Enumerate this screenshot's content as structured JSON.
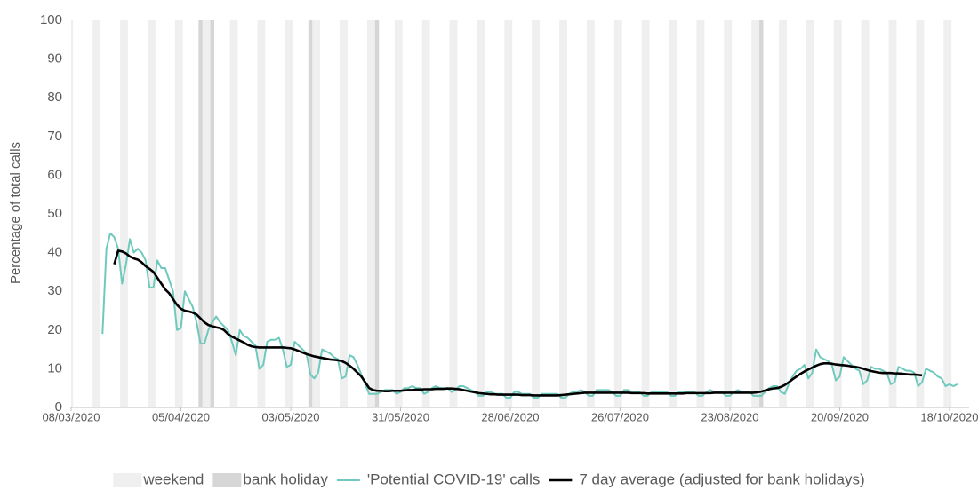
{
  "chart_data": {
    "type": "line",
    "y_label": "Percentage of total calls",
    "xlim": [
      "08/03/2020",
      "23/10/2020"
    ],
    "xticks": [
      "08/03/2020",
      "05/04/2020",
      "03/05/2020",
      "31/05/2020",
      "28/06/2020",
      "26/07/2020",
      "23/08/2020",
      "20/09/2020",
      "18/10/2020"
    ],
    "ylim": [
      0,
      100
    ],
    "yticks": [
      0,
      10,
      20,
      30,
      40,
      50,
      60,
      70,
      80,
      90,
      100
    ],
    "grid": false,
    "weekend": {
      "name": "weekend",
      "color": "#efefef"
    },
    "bank_holiday": {
      "name": "bank holiday",
      "color": "#d6d6d6",
      "dates": [
        "10/04/2020",
        "13/04/2020",
        "08/05/2020",
        "25/05/2020",
        "31/08/2020"
      ]
    },
    "x": [
      "16/03/2020",
      "17/03/2020",
      "18/03/2020",
      "19/03/2020",
      "20/03/2020",
      "21/03/2020",
      "22/03/2020",
      "23/03/2020",
      "24/03/2020",
      "25/03/2020",
      "26/03/2020",
      "27/03/2020",
      "28/03/2020",
      "29/03/2020",
      "30/03/2020",
      "31/03/2020",
      "01/04/2020",
      "02/04/2020",
      "03/04/2020",
      "04/04/2020",
      "05/04/2020",
      "06/04/2020",
      "07/04/2020",
      "08/04/2020",
      "09/04/2020",
      "10/04/2020",
      "11/04/2020",
      "12/04/2020",
      "13/04/2020",
      "14/04/2020",
      "15/04/2020",
      "16/04/2020",
      "17/04/2020",
      "18/04/2020",
      "19/04/2020",
      "20/04/2020",
      "21/04/2020",
      "22/04/2020",
      "23/04/2020",
      "24/04/2020",
      "25/04/2020",
      "26/04/2020",
      "27/04/2020",
      "28/04/2020",
      "29/04/2020",
      "30/04/2020",
      "01/05/2020",
      "02/05/2020",
      "03/05/2020",
      "04/05/2020",
      "05/05/2020",
      "06/05/2020",
      "07/05/2020",
      "08/05/2020",
      "09/05/2020",
      "10/05/2020",
      "11/05/2020",
      "12/05/2020",
      "13/05/2020",
      "14/05/2020",
      "15/05/2020",
      "16/05/2020",
      "17/05/2020",
      "18/05/2020",
      "19/05/2020",
      "20/05/2020",
      "21/05/2020",
      "22/05/2020",
      "23/05/2020",
      "24/05/2020",
      "25/05/2020",
      "26/05/2020",
      "27/05/2020",
      "28/05/2020",
      "29/05/2020",
      "30/05/2020",
      "31/05/2020",
      "01/06/2020",
      "02/06/2020",
      "03/06/2020",
      "04/06/2020",
      "05/06/2020",
      "06/06/2020",
      "07/06/2020",
      "08/06/2020",
      "09/06/2020",
      "10/06/2020",
      "11/06/2020",
      "12/06/2020",
      "13/06/2020",
      "14/06/2020",
      "15/06/2020",
      "16/06/2020",
      "17/06/2020",
      "18/06/2020",
      "19/06/2020",
      "20/06/2020",
      "21/06/2020",
      "22/06/2020",
      "23/06/2020",
      "24/06/2020",
      "25/06/2020",
      "26/06/2020",
      "27/06/2020",
      "28/06/2020",
      "29/06/2020",
      "30/06/2020",
      "01/07/2020",
      "02/07/2020",
      "03/07/2020",
      "04/07/2020",
      "05/07/2020",
      "06/07/2020",
      "07/07/2020",
      "08/07/2020",
      "09/07/2020",
      "10/07/2020",
      "11/07/2020",
      "12/07/2020",
      "13/07/2020",
      "14/07/2020",
      "15/07/2020",
      "16/07/2020",
      "17/07/2020",
      "18/07/2020",
      "19/07/2020",
      "20/07/2020",
      "21/07/2020",
      "22/07/2020",
      "23/07/2020",
      "24/07/2020",
      "25/07/2020",
      "26/07/2020",
      "27/07/2020",
      "28/07/2020",
      "29/07/2020",
      "30/07/2020",
      "31/07/2020",
      "01/08/2020",
      "02/08/2020",
      "03/08/2020",
      "04/08/2020",
      "05/08/2020",
      "06/08/2020",
      "07/08/2020",
      "08/08/2020",
      "09/08/2020",
      "10/08/2020",
      "11/08/2020",
      "12/08/2020",
      "13/08/2020",
      "14/08/2020",
      "15/08/2020",
      "16/08/2020",
      "17/08/2020",
      "18/08/2020",
      "19/08/2020",
      "20/08/2020",
      "21/08/2020",
      "22/08/2020",
      "23/08/2020",
      "24/08/2020",
      "25/08/2020",
      "26/08/2020",
      "27/08/2020",
      "28/08/2020",
      "29/08/2020",
      "30/08/2020",
      "31/08/2020",
      "01/09/2020",
      "02/09/2020",
      "03/09/2020",
      "04/09/2020",
      "05/09/2020",
      "06/09/2020",
      "07/09/2020",
      "08/09/2020",
      "09/09/2020",
      "10/09/2020",
      "11/09/2020",
      "12/09/2020",
      "13/09/2020",
      "14/09/2020",
      "15/09/2020",
      "16/09/2020",
      "17/09/2020",
      "18/09/2020",
      "19/09/2020",
      "20/09/2020",
      "21/09/2020",
      "22/09/2020",
      "23/09/2020",
      "24/09/2020",
      "25/09/2020",
      "26/09/2020",
      "27/09/2020",
      "28/09/2020",
      "29/09/2020",
      "30/09/2020",
      "01/10/2020",
      "02/10/2020",
      "03/10/2020",
      "04/10/2020",
      "05/10/2020",
      "06/10/2020",
      "07/10/2020",
      "08/10/2020",
      "09/10/2020",
      "10/10/2020",
      "11/10/2020",
      "12/10/2020",
      "13/10/2020",
      "14/10/2020",
      "15/10/2020",
      "16/10/2020",
      "17/10/2020",
      "18/10/2020",
      "19/10/2020",
      "20/10/2020"
    ],
    "series": [
      {
        "name": "'Potential COVID-19' calls",
        "color": "#6fc9bd",
        "width": 2,
        "values": [
          19,
          41,
          45,
          44,
          41,
          32,
          37,
          43.5,
          40,
          41,
          40,
          38,
          31,
          31,
          38,
          36,
          36,
          33,
          30,
          20,
          20.5,
          30,
          28,
          26,
          22,
          16.5,
          16.5,
          20,
          22,
          23.5,
          22,
          21,
          20,
          17,
          13.5,
          20,
          18.5,
          18,
          17,
          16,
          10,
          11,
          17,
          17.5,
          17.5,
          18,
          15,
          10.5,
          11,
          17,
          16,
          15,
          14,
          8.5,
          7.5,
          9,
          15,
          14.5,
          14,
          13,
          12.5,
          7.5,
          8,
          13.5,
          13,
          11,
          8.5,
          6,
          3.5,
          3.5,
          3.5,
          4,
          4.5,
          4.5,
          4.5,
          3.5,
          4,
          5,
          5,
          5.5,
          5,
          5,
          3.5,
          4,
          5,
          5.5,
          5,
          5,
          5,
          4,
          4.5,
          5.5,
          5.5,
          5,
          4.5,
          4,
          3,
          3,
          4,
          4,
          3.5,
          3.5,
          3.5,
          2.5,
          2.5,
          4,
          4,
          3.5,
          3.5,
          3.5,
          2.5,
          2.5,
          3.5,
          3.5,
          3.5,
          3.5,
          3.5,
          2.5,
          2.5,
          3.5,
          4,
          4,
          4.5,
          4,
          3,
          3,
          4.5,
          4.5,
          4.5,
          4.5,
          4,
          3,
          3,
          4.5,
          4.5,
          4,
          4,
          4,
          3,
          3,
          4,
          4,
          4,
          4,
          4,
          3,
          3,
          4,
          4,
          4,
          4,
          4,
          3,
          3,
          4,
          4.5,
          4,
          4,
          4,
          3,
          3,
          4,
          4.5,
          4,
          4,
          4,
          3,
          3,
          3,
          4,
          5,
          5.5,
          5.5,
          4,
          3.5,
          6,
          8,
          9.5,
          10,
          11,
          7.5,
          9,
          15,
          13,
          12.5,
          12,
          11,
          7,
          8,
          13,
          12,
          11,
          10,
          9.5,
          6,
          7,
          10.5,
          10,
          10,
          9.5,
          9,
          6,
          6.5,
          10.5,
          10,
          9.5,
          9.5,
          9,
          5.5,
          6.5,
          10,
          9.5,
          9,
          8,
          7.5,
          5.5,
          6,
          5.5,
          6
        ]
      },
      {
        "name": "7 day average (adjusted for bank holidays)",
        "color": "#000000",
        "width": 2.6,
        "values": [
          null,
          null,
          null,
          37,
          40.5,
          40.3,
          39.8,
          39,
          38.5,
          38.2,
          37.5,
          36.5,
          35.8,
          35,
          33.5,
          32,
          30.5,
          29.5,
          28,
          26.5,
          25.5,
          25,
          24.8,
          24.5,
          24,
          23,
          22,
          21.3,
          21,
          20.7,
          20.5,
          20,
          19,
          18.3,
          17.8,
          17.3,
          16.8,
          16.2,
          15.8,
          15.6,
          15.5,
          15.5,
          15.5,
          15.5,
          15.5,
          15.5,
          15.5,
          15.4,
          15.3,
          15,
          14.6,
          14.2,
          13.8,
          13.5,
          13.2,
          13,
          12.8,
          12.6,
          12.4,
          12.3,
          12.2,
          12,
          11.5,
          10.8,
          10,
          9,
          8,
          6.5,
          5,
          4.5,
          4.3,
          4.3,
          4.2,
          4.2,
          4.3,
          4.3,
          4.3,
          4.4,
          4.5,
          4.5,
          4.6,
          4.6,
          4.7,
          4.7,
          4.7,
          4.8,
          4.8,
          4.8,
          4.9,
          4.9,
          4.8,
          4.7,
          4.5,
          4.3,
          4.1,
          3.9,
          3.7,
          3.6,
          3.5,
          3.4,
          3.4,
          3.3,
          3.3,
          3.3,
          3.3,
          3.3,
          3.3,
          3.2,
          3.2,
          3.2,
          3.1,
          3.1,
          3.1,
          3.1,
          3.1,
          3.1,
          3.1,
          3.2,
          3.3,
          3.4,
          3.5,
          3.6,
          3.7,
          3.8,
          3.8,
          3.8,
          3.8,
          3.8,
          3.8,
          3.8,
          3.8,
          3.8,
          3.8,
          3.8,
          3.8,
          3.7,
          3.7,
          3.7,
          3.7,
          3.6,
          3.6,
          3.6,
          3.6,
          3.6,
          3.6,
          3.6,
          3.6,
          3.6,
          3.6,
          3.7,
          3.7,
          3.7,
          3.7,
          3.7,
          3.7,
          3.7,
          3.8,
          3.8,
          3.8,
          3.8,
          3.8,
          3.8,
          3.8,
          3.8,
          3.8,
          3.8,
          3.8,
          3.9,
          4.1,
          4.4,
          4.7,
          4.9,
          5,
          5.3,
          5.8,
          6.5,
          7.3,
          8,
          8.7,
          9.3,
          9.8,
          10.3,
          10.8,
          11.2,
          11.4,
          11.4,
          11.3,
          11.1,
          11,
          10.9,
          10.8,
          10.6,
          10.5,
          10.3,
          10,
          9.7,
          9.4,
          9.2,
          9,
          8.9,
          8.9,
          8.9,
          8.8,
          8.8,
          8.7,
          8.6,
          8.5,
          8.5,
          8.4,
          8.3,
          null,
          null,
          null,
          null,
          null,
          null,
          null,
          null,
          null
        ]
      }
    ]
  }
}
